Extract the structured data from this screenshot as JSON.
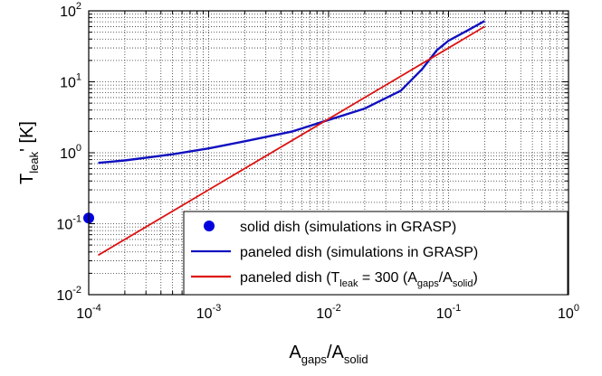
{
  "chart_data": {
    "type": "line",
    "x_scale": "log",
    "y_scale": "log",
    "xlim": [
      0.0001,
      1
    ],
    "ylim": [
      0.01,
      100
    ],
    "grid": true,
    "legend_position": "lower-right",
    "x_ticks": [
      {
        "base": "10",
        "exp": "-4"
      },
      {
        "base": "10",
        "exp": "-3"
      },
      {
        "base": "10",
        "exp": "-2"
      },
      {
        "base": "10",
        "exp": "-1"
      },
      {
        "base": "10",
        "exp": "0"
      }
    ],
    "y_ticks": [
      {
        "base": "10",
        "exp": "-2"
      },
      {
        "base": "10",
        "exp": "-1"
      },
      {
        "base": "10",
        "exp": "0"
      },
      {
        "base": "10",
        "exp": "1"
      },
      {
        "base": "10",
        "exp": "2"
      }
    ],
    "xlabel": {
      "main": "A",
      "sub1": "gaps",
      "mid": "/A",
      "sub2": "solid"
    },
    "ylabel": {
      "main": "T",
      "sub": "leak",
      "tail": "' [K]"
    },
    "series": [
      {
        "name": "solid dish (simulations in GRASP)",
        "kind": "marker",
        "color": "#0000dd",
        "points": [
          [
            0.0001,
            0.12
          ]
        ]
      },
      {
        "name": "paneled dish (simulations in GRASP)",
        "kind": "line",
        "color": "#1010c0",
        "points": [
          [
            0.00012,
            0.72
          ],
          [
            0.0002,
            0.78
          ],
          [
            0.0005,
            0.95
          ],
          [
            0.001,
            1.15
          ],
          [
            0.002,
            1.45
          ],
          [
            0.005,
            2.0
          ],
          [
            0.01,
            2.9
          ],
          [
            0.02,
            4.2
          ],
          [
            0.04,
            7.5
          ],
          [
            0.06,
            15
          ],
          [
            0.08,
            28
          ],
          [
            0.1,
            38
          ],
          [
            0.15,
            55
          ],
          [
            0.2,
            72
          ]
        ]
      },
      {
        "name": "paneled dish (T_leak = 300 (A_gaps/A_solid)",
        "kind": "line",
        "color": "#dd1111",
        "points": [
          [
            0.00012,
            0.036
          ],
          [
            0.2,
            60
          ]
        ]
      }
    ],
    "legend": [
      {
        "text": "solid dish (simulations in GRASP)"
      },
      {
        "text": "paneled dish (simulations in GRASP)"
      },
      {
        "p1": "paneled dish (T",
        "s1": "leak",
        "p2": " = 300 (A",
        "s2": "gaps",
        "p3": "/A",
        "s3": "solid",
        "p4": ")"
      }
    ]
  }
}
